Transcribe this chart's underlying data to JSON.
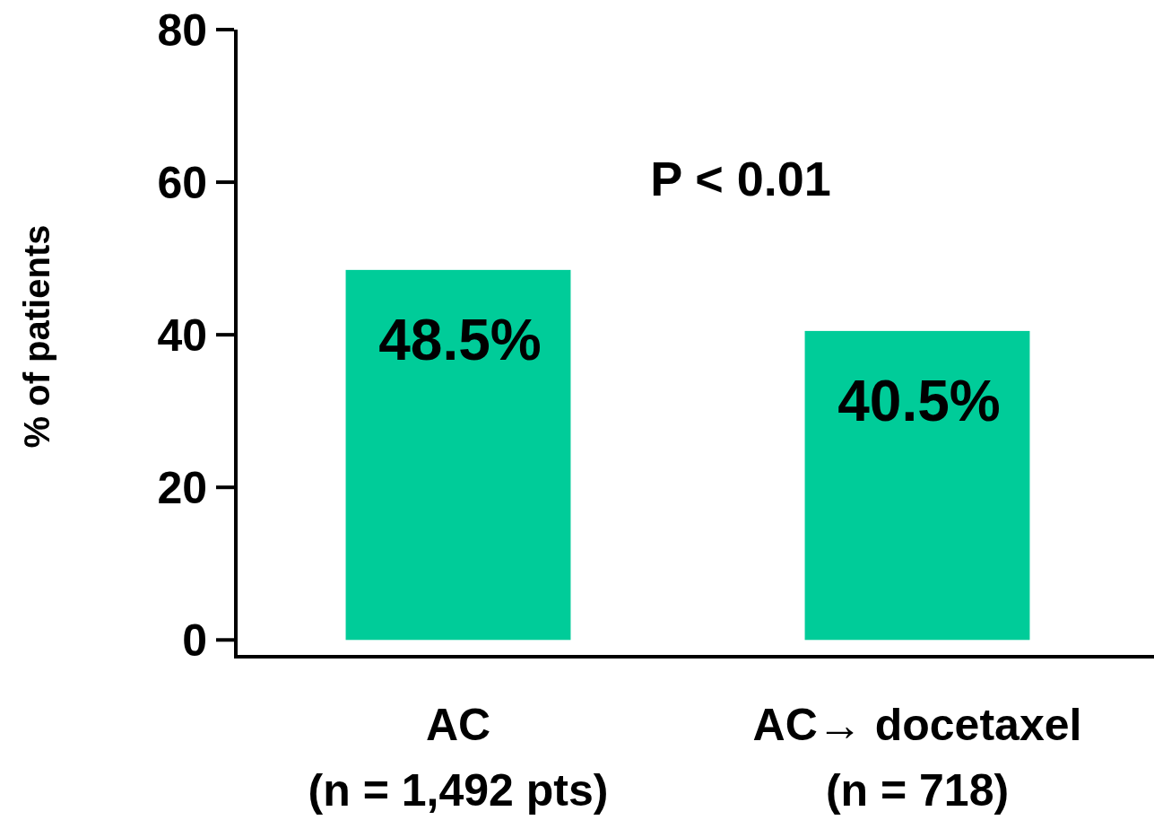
{
  "chart_data": {
    "type": "bar",
    "ylabel": "% of patients",
    "categories": [
      "AC\n(n = 1,492 pts)",
      "AC→ docetaxel\n(n = 718)"
    ],
    "values": [
      48.5,
      40.5
    ],
    "color": "#00cc99",
    "value_labels": [
      "48.5%",
      "40.5%"
    ],
    "ylim": [
      -2.2,
      80
    ],
    "yticks": [
      0,
      20,
      40,
      60,
      80
    ],
    "grid": false,
    "annotations": [
      "P < 0.01"
    ]
  }
}
